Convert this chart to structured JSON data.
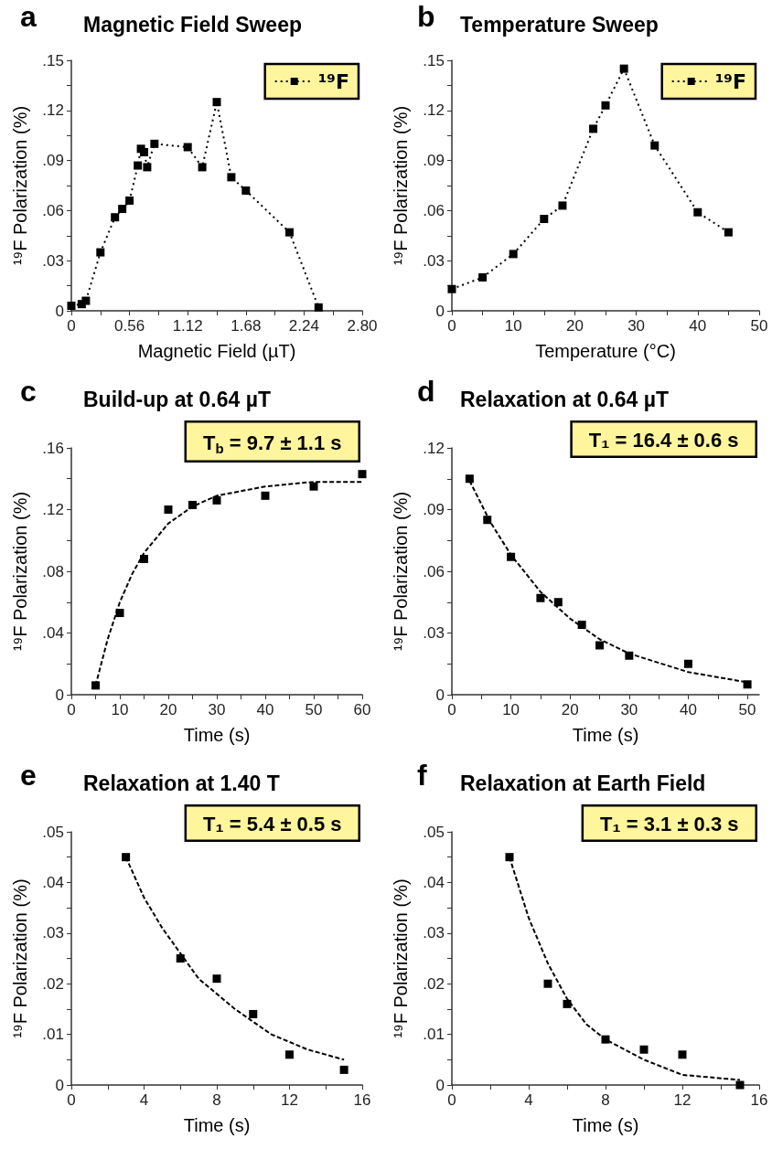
{
  "chart_data": [
    {
      "type": "line",
      "title": "Magnetic Field Sweep",
      "xlabel": "Magnetic Field (µT)",
      "ylabel": "¹⁹F Polarization (%)",
      "annotations": [
        "a"
      ],
      "legend": "top right",
      "marker": "square",
      "line_style": "dotted",
      "xlim": [
        0,
        2.8
      ],
      "ylim": [
        0,
        0.15
      ],
      "xticks": [
        0,
        {
          "value": 0.28,
          "label": null
        },
        0.56,
        {
          "value": 0.84,
          "label": null
        },
        1.12,
        {
          "value": 1.4,
          "label": null
        },
        1.68,
        {
          "value": 1.96,
          "label": null
        },
        2.24,
        {
          "value": 2.52,
          "label": null
        },
        {
          "value": 2.8,
          "label": "2.80"
        }
      ],
      "yticks": [
        {
          "value": 0,
          "label": "0"
        },
        {
          "value": 0.015,
          "label": null
        },
        {
          "value": 0.03,
          "label": ".03"
        },
        {
          "value": 0.045,
          "label": null
        },
        {
          "value": 0.06,
          "label": ".06"
        },
        {
          "value": 0.075,
          "label": null
        },
        {
          "value": 0.09,
          "label": ".09"
        },
        {
          "value": 0.105,
          "label": null
        },
        {
          "value": 0.12,
          "label": ".12"
        },
        {
          "value": 0.135,
          "label": null
        },
        {
          "value": 0.15,
          "label": ".15"
        }
      ],
      "series": [
        {
          "name": "¹⁹F",
          "color": "#000000",
          "x": [
            0,
            0.1,
            0.14,
            0.28,
            0.42,
            0.49,
            0.56,
            0.64,
            0.67,
            0.7,
            0.73,
            0.8,
            1.12,
            1.26,
            1.4,
            1.54,
            1.68,
            2.1,
            2.38
          ],
          "values": [
            0.003,
            0.004,
            0.006,
            0.035,
            0.056,
            0.061,
            0.066,
            0.087,
            0.097,
            0.095,
            0.086,
            0.1,
            0.098,
            0.086,
            0.125,
            0.08,
            0.072,
            0.047,
            0.002
          ]
        }
      ]
    },
    {
      "type": "line",
      "title": "Temperature Sweep",
      "xlabel": "Temperature (°C)",
      "ylabel": "¹⁹F Polarization (%)",
      "annotations": [
        "b"
      ],
      "legend": "top right",
      "marker": "square",
      "line_style": "dotted",
      "xlim": [
        0,
        50
      ],
      "ylim": [
        0,
        0.15
      ],
      "xticks": [
        0,
        {
          "value": 5,
          "label": null
        },
        10,
        {
          "value": 15,
          "label": null
        },
        20,
        {
          "value": 25,
          "label": null
        },
        30,
        {
          "value": 35,
          "label": null
        },
        40,
        {
          "value": 45,
          "label": null
        },
        50
      ],
      "yticks": [
        {
          "value": 0,
          "label": "0"
        },
        {
          "value": 0.015,
          "label": null
        },
        {
          "value": 0.03,
          "label": ".03"
        },
        {
          "value": 0.045,
          "label": null
        },
        {
          "value": 0.06,
          "label": ".06"
        },
        {
          "value": 0.075,
          "label": null
        },
        {
          "value": 0.09,
          "label": ".09"
        },
        {
          "value": 0.105,
          "label": null
        },
        {
          "value": 0.12,
          "label": ".12"
        },
        {
          "value": 0.135,
          "label": null
        },
        {
          "value": 0.15,
          "label": ".15"
        }
      ],
      "series": [
        {
          "name": "¹⁹F",
          "color": "#000000",
          "x": [
            0,
            5,
            10,
            15,
            18,
            23,
            25,
            28,
            33,
            40,
            45
          ],
          "values": [
            0.013,
            0.02,
            0.034,
            0.055,
            0.063,
            0.109,
            0.123,
            0.145,
            0.099,
            0.059,
            0.047
          ]
        }
      ]
    },
    {
      "type": "scatter",
      "title": "Build-up at 0.64 µT",
      "xlabel": "Time (s)",
      "ylabel": "¹⁹F Polarization (%)",
      "annotations": [
        "c",
        "T$_{b}$ = 9.7 ± 1.1 s"
      ],
      "marker": "square",
      "xlim": [
        0,
        60
      ],
      "ylim": [
        0,
        0.16
      ],
      "xticks": [
        0,
        {
          "value": 5,
          "label": null
        },
        10,
        {
          "value": 15,
          "label": null
        },
        20,
        {
          "value": 25,
          "label": null
        },
        30,
        {
          "value": 35,
          "label": null
        },
        40,
        {
          "value": 45,
          "label": null
        },
        50,
        {
          "value": 55,
          "label": null
        },
        60
      ],
      "yticks": [
        {
          "value": 0,
          "label": "0"
        },
        {
          "value": 0.02,
          "label": null
        },
        {
          "value": 0.04,
          "label": ".04"
        },
        {
          "value": 0.06,
          "label": null
        },
        {
          "value": 0.08,
          "label": ".08"
        },
        {
          "value": 0.1,
          "label": null
        },
        {
          "value": 0.12,
          "label": ".12"
        },
        {
          "value": 0.14,
          "label": null
        },
        {
          "value": 0.16,
          "label": ".16"
        }
      ],
      "series": [
        {
          "color": "#000000",
          "x": [
            5,
            10,
            15,
            20,
            25,
            30,
            40,
            50,
            60
          ],
          "values": [
            0.006,
            0.053,
            0.088,
            0.12,
            0.123,
            0.126,
            0.129,
            0.135,
            0.143
          ]
        },
        {
          "type": "line",
          "marker": "none",
          "line_style": "dashed",
          "color": "#000000",
          "x": [
            5,
            7.5,
            10,
            12.5,
            15,
            20,
            25,
            30,
            40,
            50,
            60
          ],
          "values": [
            0.006,
            0.036,
            0.06,
            0.078,
            0.092,
            0.111,
            0.122,
            0.129,
            0.135,
            0.138,
            0.138
          ]
        }
      ]
    },
    {
      "type": "scatter",
      "title": "Relaxation at 0.64 µT",
      "xlabel": "Time (s)",
      "ylabel": "¹⁹F Polarization (%)",
      "annotations": [
        "d",
        "T₁ = 16.4 ± 0.6 s"
      ],
      "marker": "square",
      "xlim": [
        0,
        52
      ],
      "ylim": [
        0,
        0.12
      ],
      "xticks": [
        0,
        {
          "value": 5,
          "label": null
        },
        10,
        {
          "value": 15,
          "label": null
        },
        20,
        {
          "value": 25,
          "label": null
        },
        30,
        {
          "value": 35,
          "label": null
        },
        40,
        {
          "value": 45,
          "label": null
        },
        50
      ],
      "yticks": [
        {
          "value": 0,
          "label": "0"
        },
        {
          "value": 0.015,
          "label": null
        },
        {
          "value": 0.03,
          "label": ".03"
        },
        {
          "value": 0.045,
          "label": null
        },
        {
          "value": 0.06,
          "label": ".06"
        },
        {
          "value": 0.075,
          "label": null
        },
        {
          "value": 0.09,
          "label": ".09"
        },
        {
          "value": 0.105,
          "label": null
        },
        {
          "value": 0.12,
          "label": ".12"
        }
      ],
      "series": [
        {
          "color": "#000000",
          "x": [
            3,
            6,
            10,
            15,
            18,
            22,
            25,
            30,
            40,
            50
          ],
          "values": [
            0.105,
            0.085,
            0.067,
            0.047,
            0.045,
            0.034,
            0.024,
            0.019,
            0.015,
            0.005
          ]
        },
        {
          "type": "line",
          "marker": "none",
          "line_style": "dashed",
          "color": "#000000",
          "x": [
            3,
            6.5,
            10,
            15,
            20,
            25,
            30,
            40,
            50
          ],
          "values": [
            0.104,
            0.084,
            0.068,
            0.05,
            0.037,
            0.027,
            0.02,
            0.011,
            0.006
          ]
        }
      ]
    },
    {
      "type": "scatter",
      "title": "Relaxation at 1.40 T",
      "xlabel": "Time (s)",
      "ylabel": "¹⁹F Polarization (%)",
      "annotations": [
        "e",
        "T₁ = 5.4 ± 0.5 s"
      ],
      "marker": "square",
      "xlim": [
        0,
        16
      ],
      "ylim": [
        0,
        0.05
      ],
      "xticks": [
        0,
        {
          "value": 2,
          "label": null
        },
        4,
        {
          "value": 6,
          "label": null
        },
        8,
        {
          "value": 10,
          "label": null
        },
        12,
        {
          "value": 14,
          "label": null
        },
        16
      ],
      "yticks": [
        {
          "value": 0,
          "label": "0"
        },
        {
          "value": 0.005,
          "label": null
        },
        {
          "value": 0.01,
          "label": ".01"
        },
        {
          "value": 0.015,
          "label": null
        },
        {
          "value": 0.02,
          "label": ".02"
        },
        {
          "value": 0.025,
          "label": null
        },
        {
          "value": 0.03,
          "label": ".03"
        },
        {
          "value": 0.035,
          "label": null
        },
        {
          "value": 0.04,
          "label": ".04"
        },
        {
          "value": 0.045,
          "label": null
        },
        {
          "value": 0.05,
          "label": ".05"
        }
      ],
      "series": [
        {
          "color": "#000000",
          "x": [
            3,
            6,
            8,
            10,
            12,
            15
          ],
          "values": [
            0.045,
            0.025,
            0.021,
            0.014,
            0.006,
            0.003
          ]
        },
        {
          "type": "line",
          "marker": "none",
          "line_style": "dashed",
          "color": "#000000",
          "x": [
            3,
            4,
            5,
            6,
            7,
            9,
            11,
            13,
            15
          ],
          "values": [
            0.045,
            0.037,
            0.031,
            0.026,
            0.021,
            0.015,
            0.01,
            0.007,
            0.005
          ]
        }
      ]
    },
    {
      "type": "scatter",
      "title": "Relaxation at Earth Field",
      "xlabel": "Time (s)",
      "ylabel": "¹⁹F Polarization (%)",
      "annotations": [
        "f",
        "T₁ = 3.1 ± 0.3 s"
      ],
      "marker": "square",
      "xlim": [
        0,
        16
      ],
      "ylim": [
        0,
        0.05
      ],
      "xticks": [
        0,
        {
          "value": 2,
          "label": null
        },
        4,
        {
          "value": 6,
          "label": null
        },
        8,
        {
          "value": 10,
          "label": null
        },
        12,
        {
          "value": 14,
          "label": null
        },
        16
      ],
      "yticks": [
        {
          "value": 0,
          "label": "0"
        },
        {
          "value": 0.005,
          "label": null
        },
        {
          "value": 0.01,
          "label": ".01"
        },
        {
          "value": 0.015,
          "label": null
        },
        {
          "value": 0.02,
          "label": ".02"
        },
        {
          "value": 0.025,
          "label": null
        },
        {
          "value": 0.03,
          "label": ".03"
        },
        {
          "value": 0.035,
          "label": null
        },
        {
          "value": 0.04,
          "label": ".04"
        },
        {
          "value": 0.045,
          "label": null
        },
        {
          "value": 0.05,
          "label": ".05"
        }
      ],
      "series": [
        {
          "color": "#000000",
          "x": [
            3,
            5,
            6,
            8,
            10,
            12,
            15
          ],
          "values": [
            0.045,
            0.02,
            0.016,
            0.009,
            0.007,
            0.006,
            0
          ]
        },
        {
          "type": "line",
          "marker": "none",
          "line_style": "dashed",
          "color": "#000000",
          "x": [
            3,
            4,
            5,
            6,
            7,
            8,
            10,
            12,
            15
          ],
          "values": [
            0.045,
            0.033,
            0.024,
            0.017,
            0.012,
            0.009,
            0.005,
            0.002,
            0.001
          ]
        }
      ]
    }
  ]
}
